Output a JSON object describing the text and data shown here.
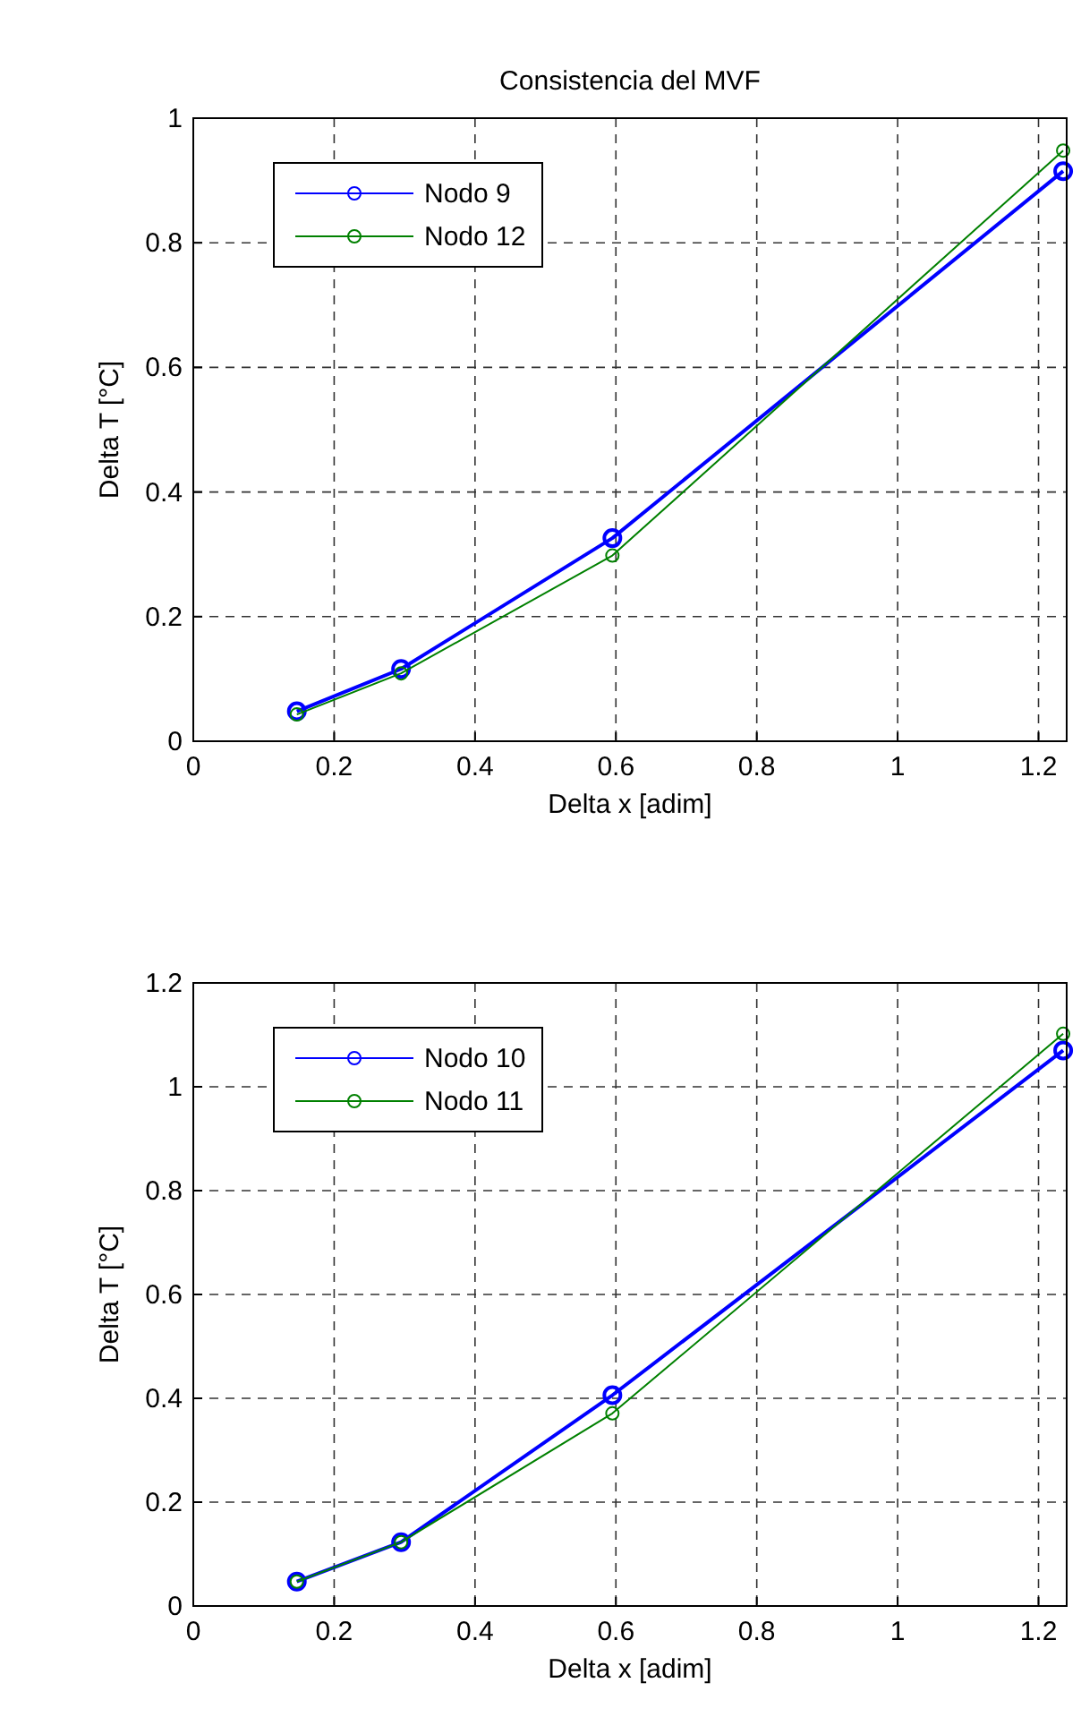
{
  "chart_data": [
    {
      "type": "line",
      "title": "Consistencia del MVF",
      "xlabel": "Delta x [adim]",
      "ylabel": "Delta T [°C]",
      "x": [
        0.147,
        0.295,
        0.595,
        1.235
      ],
      "xlim": [
        0,
        1.24
      ],
      "xticks": [
        0,
        0.2,
        0.4,
        0.6,
        0.8,
        1,
        1.2
      ],
      "ylim": [
        0,
        1
      ],
      "yticks": [
        0,
        0.2,
        0.4,
        0.6,
        0.8,
        1
      ],
      "grid": true,
      "legend": "top left",
      "marker": "circle",
      "line_style": "solid",
      "series": [
        {
          "name": "Nodo 9",
          "color": "#0000ff",
          "values": [
            0.048,
            0.116,
            0.326,
            0.915
          ]
        },
        {
          "name": "Nodo 12",
          "color": "#008000",
          "values": [
            0.043,
            0.109,
            0.298,
            0.948
          ]
        }
      ]
    },
    {
      "type": "line",
      "xlabel": "Delta x [adim]",
      "ylabel": "Delta T [°C]",
      "x": [
        0.147,
        0.295,
        0.595,
        1.235
      ],
      "xlim": [
        0,
        1.24
      ],
      "xticks": [
        0,
        0.2,
        0.4,
        0.6,
        0.8,
        1,
        1.2
      ],
      "ylim": [
        0,
        1.2
      ],
      "yticks": [
        0,
        0.2,
        0.4,
        0.6,
        0.8,
        1,
        1.2
      ],
      "grid": true,
      "legend": "top left",
      "marker": "circle",
      "line_style": "solid",
      "series": [
        {
          "name": "Nodo 10",
          "color": "#0000ff",
          "values": [
            0.047,
            0.123,
            0.406,
            1.07
          ]
        },
        {
          "name": "Nodo 11",
          "color": "#008000",
          "values": [
            0.047,
            0.123,
            0.371,
            1.102
          ]
        }
      ]
    }
  ]
}
